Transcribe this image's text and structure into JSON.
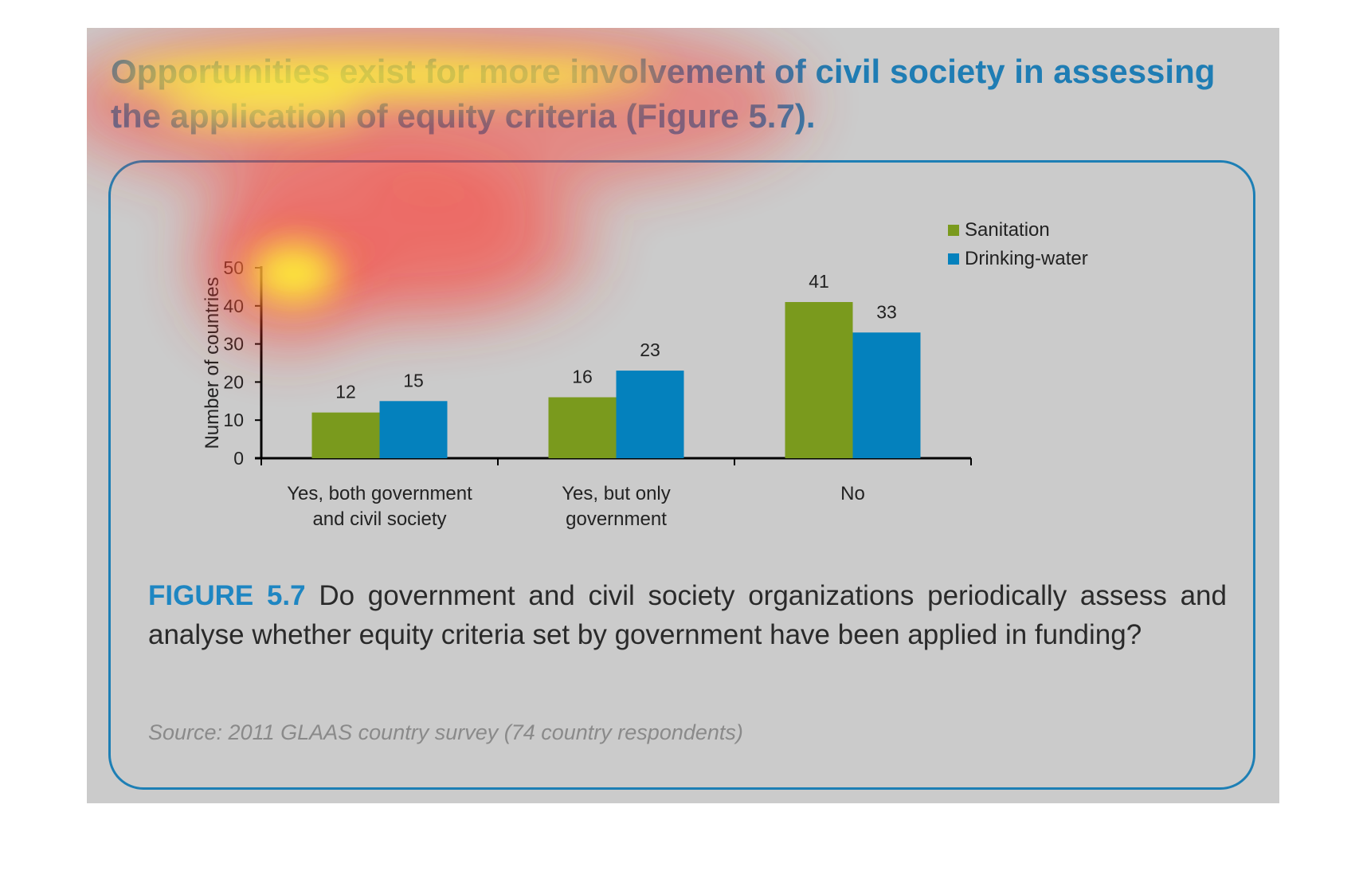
{
  "headline": "Opportunities exist for more involvement of civil society in assessing the application of equity criteria (Figure 5.7).",
  "caption": {
    "label": "FIGURE 5.7",
    "text": "Do government and civil society organizations periodically assess and analyse whether equity criteria set by government have been applied in funding?"
  },
  "source": "Source: 2011 GLAAS country survey (74 country respondents)",
  "colors": {
    "sanitation": "#7a9a1d",
    "drinking_water": "#0481bd",
    "accent": "#1e86c2",
    "panel_bg": "#cbcbcb"
  },
  "chart_data": {
    "type": "bar",
    "categories": [
      [
        "Yes, both government",
        "and civil society"
      ],
      [
        "Yes, but only",
        "government"
      ],
      [
        "No"
      ]
    ],
    "series": [
      {
        "name": "Sanitation",
        "values": [
          12,
          16,
          41
        ]
      },
      {
        "name": "Drinking-water",
        "values": [
          15,
          23,
          33
        ]
      }
    ],
    "ylabel": "Number of countries",
    "ylim": [
      0,
      50
    ],
    "yticks": [
      0,
      10,
      20,
      30,
      40,
      50
    ],
    "data_labels": true,
    "legend": "top-right",
    "grid": false,
    "overlay": "attention heatmap over upper-left region"
  }
}
